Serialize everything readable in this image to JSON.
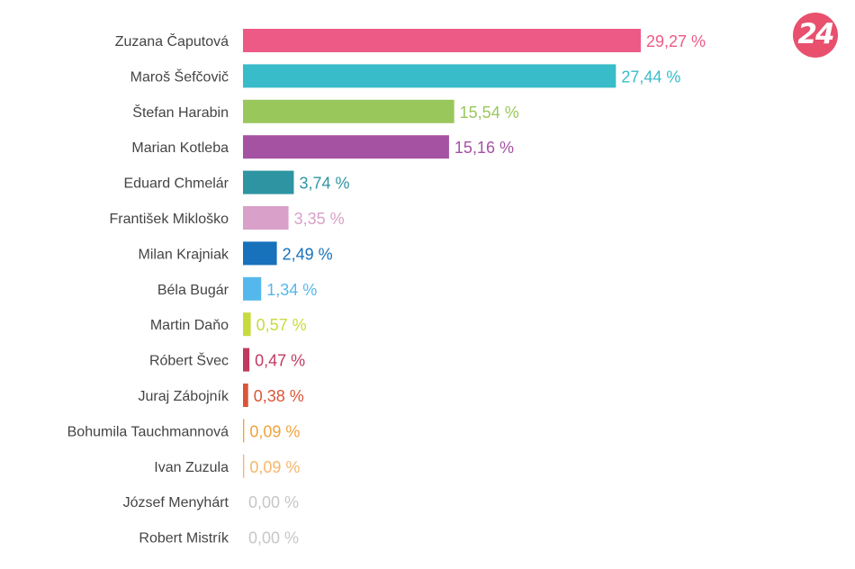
{
  "brand": {
    "logo_text": "24",
    "logo_color": "#e8506e"
  },
  "chart_data": {
    "type": "bar",
    "orientation": "horizontal",
    "title": "",
    "xlabel": "",
    "ylabel": "",
    "grid": false,
    "legend": "none",
    "xlim": [
      0,
      29.27
    ],
    "unit": "%",
    "categories": [
      "Zuzana Čaputová",
      "Maroš Šefčovič",
      "Štefan Harabin",
      "Marian Kotleba",
      "Eduard Chmelár",
      "František Mikloško",
      "Milan Krajniak",
      "Béla Bugár",
      "Martin Daňo",
      "Róbert Švec",
      "Juraj Zábojník",
      "Bohumila Tauchmannová",
      "Ivan Zuzula",
      "József Menyhárt",
      "Robert Mistrík"
    ],
    "values": [
      29.27,
      27.44,
      15.54,
      15.16,
      3.74,
      3.35,
      2.49,
      1.34,
      0.57,
      0.47,
      0.38,
      0.09,
      0.09,
      0.0,
      0.0
    ],
    "value_labels": [
      "29,27 %",
      "27,44 %",
      "15,54 %",
      "15,16 %",
      "3,74 %",
      "3,35 %",
      "2,49 %",
      "1,34 %",
      "0,57 %",
      "0,47 %",
      "0,38 %",
      "0,09 %",
      "0,09 %",
      "0,00 %",
      "0,00 %"
    ],
    "colors": [
      "#ee5a86",
      "#38bcc9",
      "#9ac75c",
      "#a652a2",
      "#2e94a2",
      "#d9a0c9",
      "#1771bb",
      "#55b8ec",
      "#c8da3e",
      "#c2395f",
      "#dc5438",
      "#f1a33b",
      "#f7b66b",
      "#c7c7c7",
      "#c7c7c7"
    ]
  }
}
